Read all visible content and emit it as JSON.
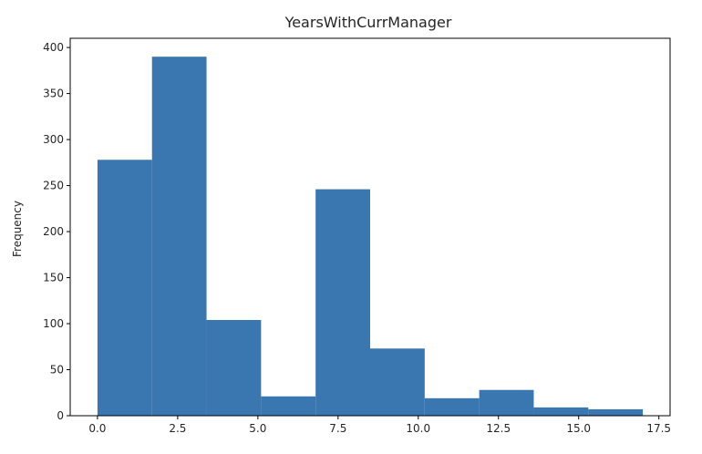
{
  "chart_data": {
    "type": "bar",
    "title": "YearsWithCurrManager",
    "xlabel": "",
    "ylabel": "Frequency",
    "bin_edges": [
      0,
      1.7,
      3.4,
      5.1,
      6.8,
      8.5,
      10.2,
      11.9,
      13.6,
      15.3,
      17.0
    ],
    "values": [
      278,
      390,
      104,
      21,
      246,
      73,
      19,
      28,
      9,
      7
    ],
    "xlim": [
      -0.85,
      17.85
    ],
    "ylim": [
      0,
      410
    ],
    "xticks": [
      0.0,
      2.5,
      5.0,
      7.5,
      10.0,
      12.5,
      15.0,
      17.5
    ],
    "xtick_labels": [
      "0.0",
      "2.5",
      "5.0",
      "7.5",
      "10.0",
      "12.5",
      "15.0",
      "17.5"
    ],
    "yticks": [
      0,
      50,
      100,
      150,
      200,
      250,
      300,
      350,
      400
    ],
    "ytick_labels": [
      "0",
      "50",
      "100",
      "150",
      "200",
      "250",
      "300",
      "350",
      "400"
    ],
    "grid": false,
    "bar_color": "#3a76af"
  }
}
